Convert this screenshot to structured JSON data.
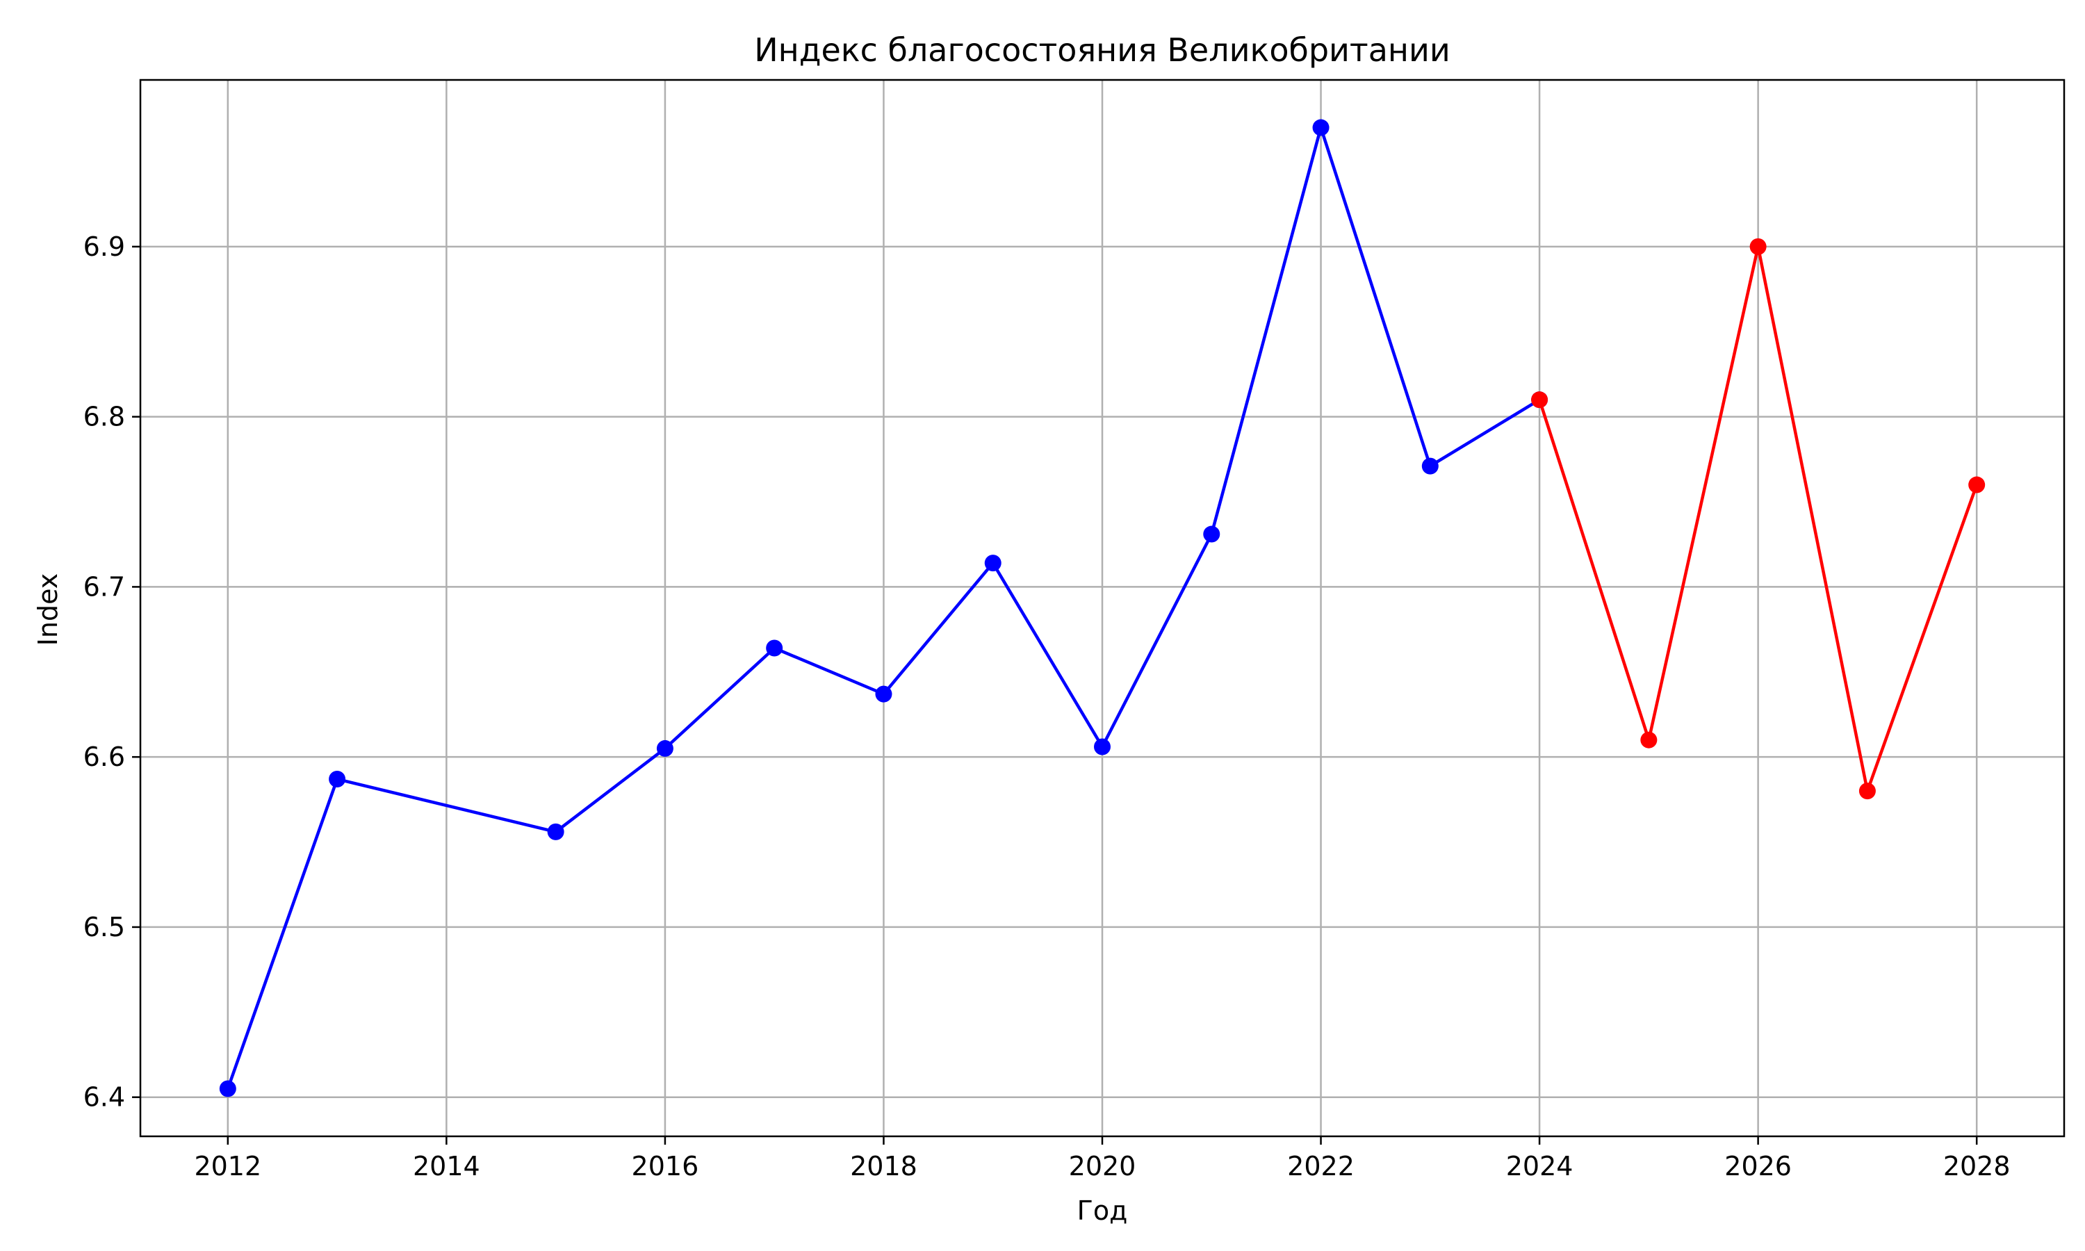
{
  "chart_data": {
    "type": "line",
    "title": "Индекс благосостояния Великобритании",
    "xlabel": "Год",
    "ylabel": "Index",
    "xlim": [
      2011.2,
      2028.8
    ],
    "ylim": [
      6.377,
      6.998
    ],
    "grid": true,
    "x_ticks": [
      2012,
      2014,
      2016,
      2018,
      2020,
      2022,
      2024,
      2026,
      2028
    ],
    "y_ticks": [
      6.4,
      6.5,
      6.6,
      6.7,
      6.8,
      6.9
    ],
    "x_tick_labels": [
      "2012",
      "2014",
      "2016",
      "2018",
      "2020",
      "2022",
      "2024",
      "2026",
      "2028"
    ],
    "y_tick_labels": [
      "6.4",
      "6.5",
      "6.6",
      "6.7",
      "6.8",
      "6.9"
    ],
    "series": [
      {
        "color": "#0000ff",
        "x": [
          2012,
          2013,
          2015,
          2016,
          2017,
          2018,
          2019,
          2020,
          2021,
          2022,
          2023,
          2024
        ],
        "values": [
          6.405,
          6.587,
          6.556,
          6.605,
          6.664,
          6.637,
          6.714,
          6.606,
          6.731,
          6.97,
          6.771,
          6.81
        ]
      },
      {
        "color": "#ff0000",
        "x": [
          2024,
          2025,
          2026,
          2027,
          2028
        ],
        "values": [
          6.81,
          6.61,
          6.9,
          6.58,
          6.76
        ]
      }
    ]
  }
}
